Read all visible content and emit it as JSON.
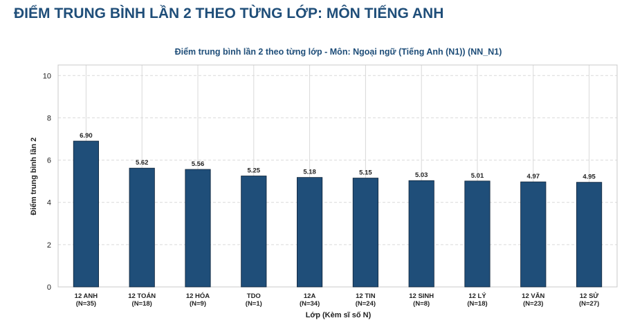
{
  "page_title": "ĐIỂM TRUNG BÌNH LẦN 2 THEO TỪNG LỚP: MÔN TIẾNG ANH",
  "chart_data": {
    "type": "bar",
    "title": "Điểm trung bình lần 2 theo từng lớp - Môn: Ngoại ngữ (Tiếng Anh (N1)) (NN_N1)",
    "xlabel": "Lớp (Kèm sĩ số N)",
    "ylabel": "Điểm trung bình lần 2",
    "categories": [
      [
        "12 ANH",
        "(N=35)"
      ],
      [
        "12 TOÁN",
        "(N=18)"
      ],
      [
        "12 HÓA",
        "(N=9)"
      ],
      [
        "TDO",
        "(N=1)"
      ],
      [
        "12A",
        "(N=34)"
      ],
      [
        "12 TIN",
        "(N=24)"
      ],
      [
        "12 SINH",
        "(N=8)"
      ],
      [
        "12 LÝ",
        "(N=18)"
      ],
      [
        "12 VĂN",
        "(N=23)"
      ],
      [
        "12 SỬ",
        "(N=27)"
      ]
    ],
    "values": [
      6.9,
      5.62,
      5.56,
      5.25,
      5.18,
      5.15,
      5.03,
      5.01,
      4.97,
      4.95
    ],
    "value_labels": [
      "6.90",
      "5.62",
      "5.56",
      "5.25",
      "5.18",
      "5.15",
      "5.03",
      "5.01",
      "4.97",
      "4.95"
    ],
    "yticks": [
      0,
      2,
      4,
      6,
      8,
      10
    ],
    "ylim": [
      0,
      10.5
    ],
    "grid": true,
    "colors": {
      "bar": "#1f4e79",
      "bar_edge": "#0d2238",
      "grid": "#d9d9d9",
      "axes": "#c8c8c8"
    }
  }
}
